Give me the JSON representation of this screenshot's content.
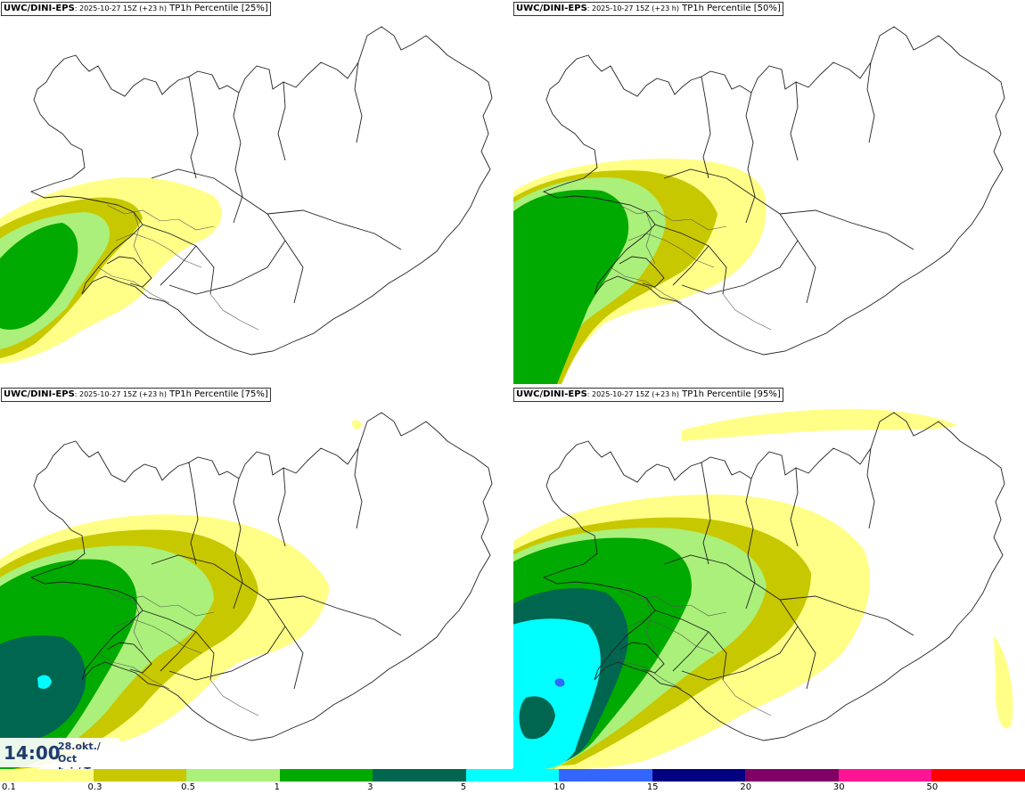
{
  "model": "UWC/DINI-EPS",
  "run": ": 2025-10-27 15Z (+23 h)",
  "field": " TP1h Percentile",
  "panels": [
    {
      "percentile": "[25%]"
    },
    {
      "percentile": "[50%]"
    },
    {
      "percentile": "[75%]"
    },
    {
      "percentile": "[95%]"
    }
  ],
  "valid_time": {
    "time": "14:00",
    "date_line1": "28.okt./ Oct",
    "date_line2": "Þri./ Tue"
  },
  "legend": {
    "colors": [
      "#ffff88",
      "#c8c800",
      "#aaf07a",
      "#00aa00",
      "#006650",
      "#00ffff",
      "#3366ff",
      "#000080",
      "#800066",
      "#ff1493",
      "#ff0000"
    ],
    "ticks": [
      "0.1",
      "0.3",
      "0.5",
      "1",
      "3",
      "5",
      "10",
      "15",
      "20",
      "30",
      "50"
    ]
  }
}
